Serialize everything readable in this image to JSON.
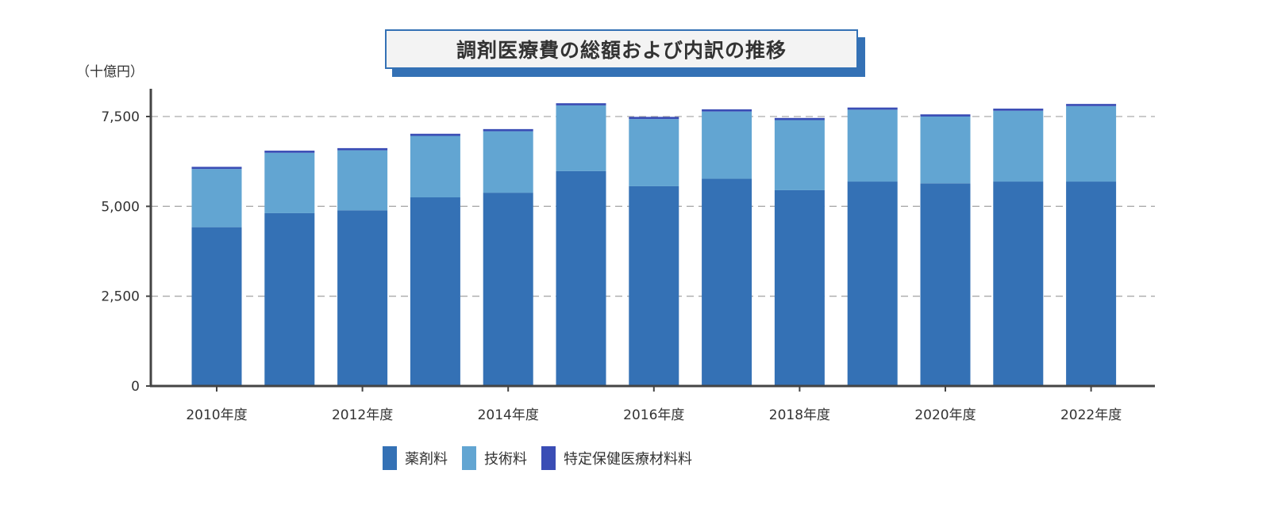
{
  "chart_data": {
    "type": "bar",
    "stacked": true,
    "title": "調剤医療費の総額および内訳の推移",
    "ylabel": "（十億円）",
    "xlabel": "",
    "ylim": [
      0,
      8200
    ],
    "yticks": [
      0,
      2500,
      5000,
      7500
    ],
    "ytick_labels": [
      "0",
      "2,500",
      "5,000",
      "7,500"
    ],
    "grid": "horizontal dashed",
    "legend_position": "bottom",
    "categories": [
      "2010年度",
      "2011年度",
      "2012年度",
      "2013年度",
      "2014年度",
      "2015年度",
      "2016年度",
      "2017年度",
      "2018年度",
      "2019年度",
      "2020年度",
      "2021年度",
      "2022年度"
    ],
    "xtick_labels": [
      "2010年度",
      "",
      "2012年度",
      "",
      "2014年度",
      "",
      "2016年度",
      "",
      "2018年度",
      "",
      "2020年度",
      "",
      "2022年度"
    ],
    "series": [
      {
        "name": "薬剤料",
        "color": "#3471b5",
        "values": [
          4420,
          4810,
          4890,
          5250,
          5380,
          5980,
          5560,
          5770,
          5450,
          5690,
          5640,
          5690,
          5690
        ]
      },
      {
        "name": "技術料",
        "color": "#62a5d2",
        "values": [
          1620,
          1680,
          1670,
          1710,
          1710,
          1830,
          1870,
          1870,
          1950,
          2000,
          1860,
          1970,
          2100
        ]
      },
      {
        "name": "特定保健医療材料料",
        "color": "#3a4db5",
        "values": [
          60,
          60,
          60,
          60,
          60,
          60,
          60,
          60,
          60,
          60,
          60,
          60,
          60
        ]
      }
    ]
  }
}
